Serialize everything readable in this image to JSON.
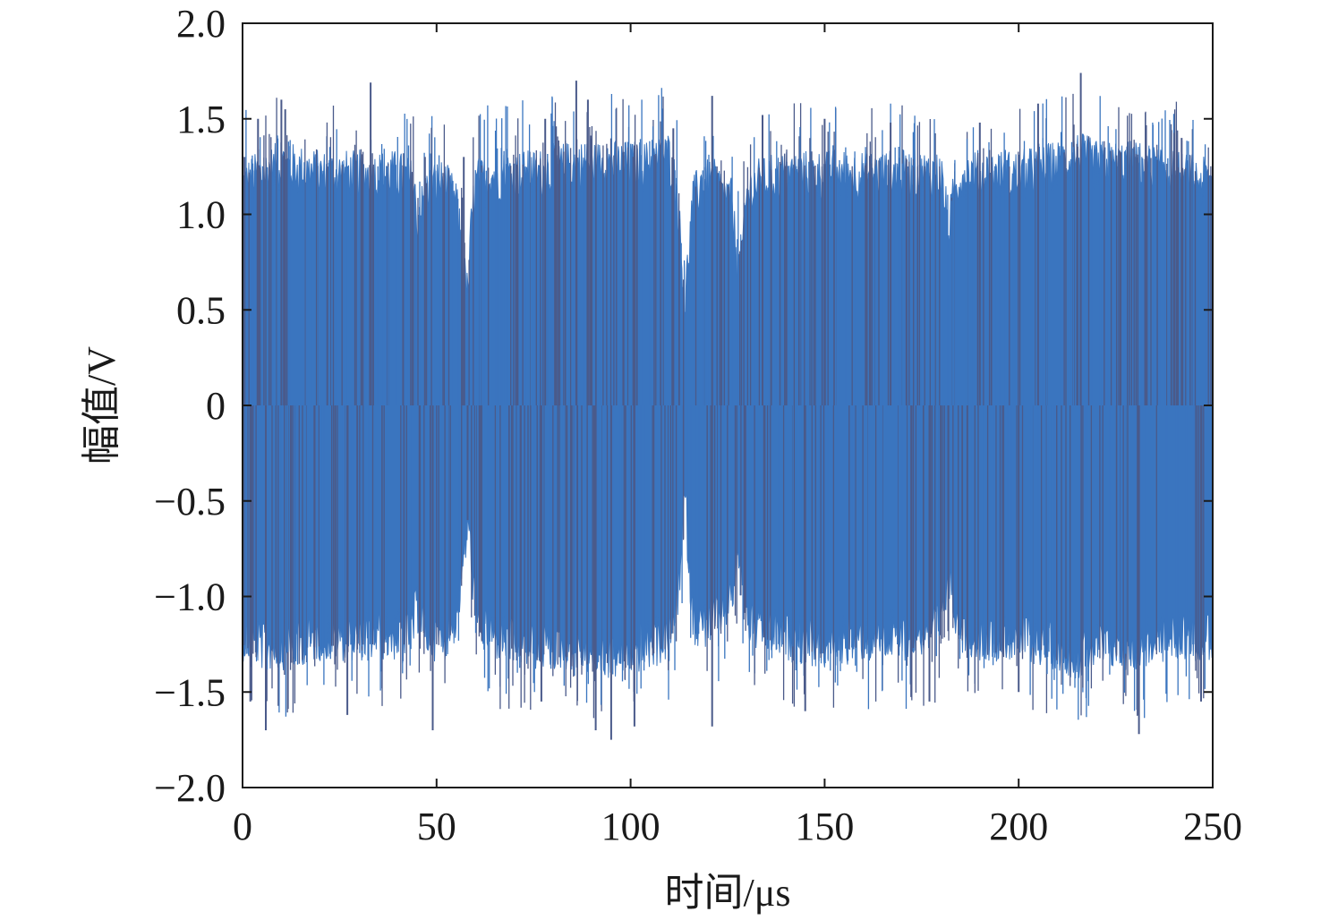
{
  "chart_data": {
    "type": "line",
    "title": "",
    "xlabel": "时间/μs",
    "ylabel": "幅值/V",
    "xlim": [
      0,
      250
    ],
    "ylim": [
      -2.0,
      2.0
    ],
    "grid": false,
    "legend": "none",
    "x_ticks": [
      {
        "value": 0,
        "label": "0"
      },
      {
        "value": 50,
        "label": "50"
      },
      {
        "value": 100,
        "label": "100"
      },
      {
        "value": 150,
        "label": "150"
      },
      {
        "value": 200,
        "label": "200"
      },
      {
        "value": 250,
        "label": "250"
      }
    ],
    "y_ticks": [
      {
        "value": 2.0,
        "label": "2.0"
      },
      {
        "value": 1.5,
        "label": "1.5"
      },
      {
        "value": 1.0,
        "label": "1.0"
      },
      {
        "value": 0.5,
        "label": "0.5"
      },
      {
        "value": 0,
        "label": "0"
      },
      {
        "value": -0.5,
        "label": "−0.5"
      },
      {
        "value": -1.0,
        "label": "−1.0"
      },
      {
        "value": -1.5,
        "label": "−1.5"
      },
      {
        "value": -2.0,
        "label": "−2.0"
      }
    ],
    "series": [
      {
        "color": "#3a75bf",
        "spike_color": "#4a5a8a",
        "envelope": {
          "x": [
            0,
            5,
            10,
            20,
            30,
            40,
            44,
            45,
            48,
            52,
            55,
            56,
            57,
            58,
            59,
            60,
            65,
            75,
            85,
            95,
            105,
            110,
            112,
            113,
            114,
            115,
            116,
            118,
            122,
            126,
            127,
            128,
            129,
            130,
            132,
            140,
            150,
            160,
            170,
            180,
            181,
            182,
            183,
            185,
            190,
            200,
            210,
            215,
            220,
            230,
            240,
            250
          ],
          "upper": [
            1.15,
            1.2,
            1.25,
            1.2,
            1.2,
            1.2,
            1.15,
            0.95,
            1.15,
            1.15,
            1.05,
            0.9,
            0.7,
            0.55,
            0.95,
            1.15,
            1.2,
            1.2,
            1.25,
            1.25,
            1.25,
            1.3,
            1.1,
            0.8,
            0.5,
            0.8,
            1.05,
            1.15,
            1.15,
            1.05,
            0.85,
            0.7,
            0.85,
            1.1,
            1.15,
            1.2,
            1.2,
            1.2,
            1.2,
            1.2,
            1.05,
            0.9,
            1.05,
            1.2,
            1.2,
            1.2,
            1.25,
            1.3,
            1.25,
            1.25,
            1.2,
            1.15
          ],
          "lower": [
            -1.2,
            -1.25,
            -1.25,
            -1.2,
            -1.2,
            -1.2,
            -1.15,
            -1.05,
            -1.2,
            -1.2,
            -1.1,
            -0.95,
            -0.8,
            -0.6,
            -0.8,
            -1.1,
            -1.2,
            -1.25,
            -1.25,
            -1.3,
            -1.25,
            -1.2,
            -1.0,
            -0.8,
            -0.45,
            -0.8,
            -1.1,
            -1.15,
            -1.1,
            -1.0,
            -0.85,
            -0.75,
            -0.95,
            -1.1,
            -1.15,
            -1.2,
            -1.25,
            -1.2,
            -1.2,
            -1.15,
            -1.0,
            -0.9,
            -1.0,
            -1.15,
            -1.2,
            -1.2,
            -1.25,
            -1.3,
            -1.25,
            -1.25,
            -1.2,
            -1.2
          ]
        },
        "peaks": [
          {
            "x": 0.5,
            "y": 1.3
          },
          {
            "x": 4,
            "y": 1.5
          },
          {
            "x": 10,
            "y": 1.6
          },
          {
            "x": 11,
            "y": 1.55
          },
          {
            "x": 33,
            "y": 1.69
          },
          {
            "x": 47,
            "y": 1.3
          },
          {
            "x": 57,
            "y": 1.3
          },
          {
            "x": 78,
            "y": 1.5
          },
          {
            "x": 86,
            "y": 1.7
          },
          {
            "x": 89,
            "y": 1.6
          },
          {
            "x": 111,
            "y": 1.45
          },
          {
            "x": 121,
            "y": 1.62
          },
          {
            "x": 134,
            "y": 1.52
          },
          {
            "x": 150,
            "y": 1.5
          },
          {
            "x": 167,
            "y": 1.48
          },
          {
            "x": 190,
            "y": 1.48
          },
          {
            "x": 205,
            "y": 1.58
          },
          {
            "x": 216,
            "y": 1.74
          },
          {
            "x": 242,
            "y": 1.4
          },
          {
            "x": 2,
            "y": -1.55
          },
          {
            "x": 6,
            "y": -1.7
          },
          {
            "x": 27,
            "y": -1.62
          },
          {
            "x": 49,
            "y": -1.7
          },
          {
            "x": 58,
            "y": -0.6
          },
          {
            "x": 77,
            "y": -1.55
          },
          {
            "x": 91,
            "y": -1.7
          },
          {
            "x": 95,
            "y": -1.75
          },
          {
            "x": 101,
            "y": -1.68
          },
          {
            "x": 121,
            "y": -1.68
          },
          {
            "x": 145,
            "y": -1.6
          },
          {
            "x": 177,
            "y": -1.55
          },
          {
            "x": 200,
            "y": -1.5
          },
          {
            "x": 231,
            "y": -1.72
          },
          {
            "x": 247,
            "y": -1.55
          }
        ]
      }
    ]
  }
}
